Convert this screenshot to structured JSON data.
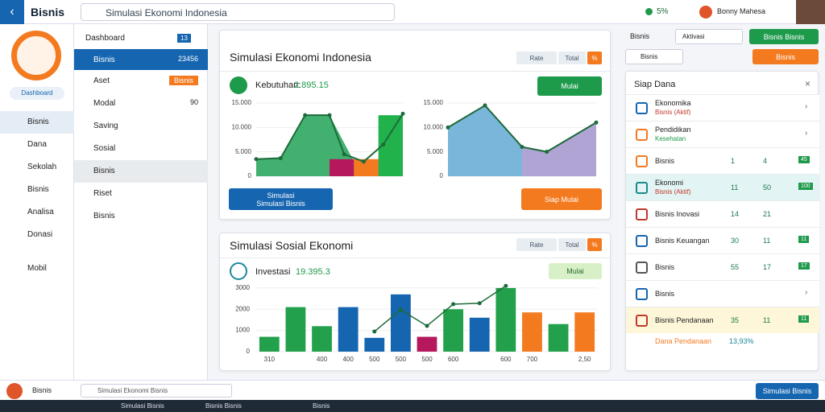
{
  "topbar": {
    "brand": "Bisnis",
    "search": "Simulasi Ekonomi Indonesia",
    "status": "5%",
    "user": "Bonny Mahesa"
  },
  "sidebar": {
    "button": "Dashboard",
    "items": [
      "Bisnis",
      "Dana",
      "Sekolah",
      "Bisnis",
      "Analisa",
      "Donasi",
      "Mobil"
    ]
  },
  "subnav": {
    "title": "Dashboard",
    "badge": "13",
    "items": [
      {
        "label": "Bisnis",
        "value": "23456"
      },
      {
        "label": "Aset",
        "value": "Bisnis"
      },
      {
        "label": "Modal",
        "value": "90"
      },
      {
        "label": "Saving"
      },
      {
        "label": "Sosial"
      },
      {
        "label": "Bisnis"
      },
      {
        "label": "Riset"
      },
      {
        "label": "Bisnis"
      }
    ]
  },
  "card1": {
    "title": "Simulasi Ekonomi Indonesia",
    "tabs": [
      "Rate",
      "Total",
      "%"
    ],
    "stat_label": "Kebutuhan:",
    "stat_value": "2.895.15",
    "button": "Mulai",
    "button_left": [
      "Simulasi",
      "Simulasi Bisnis"
    ],
    "button_right": "Siap Mulai",
    "chart_left": {
      "ylim": [
        0,
        15000
      ],
      "yticks": [
        {
          "value": 0,
          "label": "0"
        },
        {
          "value": 5000,
          "label": "5.000"
        },
        {
          "value": 10000,
          "label": "10.000"
        },
        {
          "value": 15000,
          "label": "15.000"
        }
      ],
      "xlim": [
        0,
        6
      ],
      "areas": [
        {
          "color": "#2ea860",
          "x": [
            0,
            1,
            2,
            3,
            4
          ],
          "values": [
            3500,
            3700,
            12500,
            12500,
            3000
          ]
        }
      ],
      "bars": [
        {
          "color": "#b5185c",
          "x": [
            3,
            4
          ],
          "value": 3500
        },
        {
          "color": "#f47a20",
          "x": [
            4,
            5
          ],
          "value": 3500
        },
        {
          "color": "#f47a20",
          "x": [
            5,
            6
          ],
          "value": 3500
        },
        {
          "color": "#22b24c",
          "x": [
            5,
            6
          ],
          "value": 12500
        }
      ],
      "line": {
        "color": "#1d6b3a",
        "x": [
          0,
          1,
          2,
          3,
          3.6,
          4.4,
          5.2,
          6
        ],
        "values": [
          3500,
          3700,
          12500,
          12500,
          4500,
          3000,
          6500,
          12800
        ]
      }
    },
    "chart_right": {
      "ylim": [
        0,
        15000
      ],
      "yticks": [
        {
          "value": 0,
          "label": "0"
        },
        {
          "value": 5000,
          "label": "5.000"
        },
        {
          "value": 10000,
          "label": "10.000"
        },
        {
          "value": 15000,
          "label": "15.000"
        }
      ],
      "xlim": [
        0,
        6
      ],
      "areas": [
        {
          "color": "#6aaed6",
          "x": [
            0,
            1.5,
            3
          ],
          "values": [
            10000,
            14500,
            6000
          ]
        },
        {
          "color": "#a79ad0",
          "x": [
            3,
            4,
            6
          ],
          "values": [
            6000,
            5000,
            11000
          ]
        }
      ],
      "line": {
        "color": "#1d6b3a",
        "x": [
          0,
          1.5,
          3,
          4,
          6
        ],
        "values": [
          10000,
          14500,
          6000,
          5000,
          11000
        ]
      }
    }
  },
  "card2": {
    "title": "Simulasi Sosial Ekonomi",
    "tabs": [
      "Rate",
      "Total",
      "%"
    ],
    "stat_label": "Investasi",
    "stat_value": "19.395.3",
    "button": "Mulai",
    "chart": {
      "ylim": [
        0,
        3300
      ],
      "yticks": [
        {
          "value": 0,
          "label": "0"
        },
        {
          "value": 1000,
          "label": "1000"
        },
        {
          "value": 2000,
          "label": "2000"
        },
        {
          "value": 3000,
          "label": "3000"
        }
      ],
      "categories": [
        "310",
        null,
        "400",
        "400",
        "500",
        "500",
        "500",
        "600",
        null,
        "600",
        "700",
        null,
        "2,50"
      ],
      "values": [
        700,
        2100,
        1200,
        2100,
        650,
        2700,
        700,
        2000,
        1600,
        3000,
        1850,
        1300,
        1850
      ],
      "colors": [
        "#22a04b",
        "#22a04b",
        "#22a04b",
        "#1565b0",
        "#1565b0",
        "#1565b0",
        "#b5185c",
        "#22a04b",
        "#1565b0",
        "#22a04b",
        "#f47a20",
        "#22a04b",
        "#f47a20"
      ],
      "line": {
        "color": "#1d6b3a",
        "values": [
          null,
          null,
          null,
          null,
          950,
          1975,
          1215,
          2240,
          2280,
          3100,
          null,
          null,
          null
        ]
      }
    }
  },
  "filters": {
    "label": "Bisnis",
    "dropdown": "Aktivasi",
    "green_button": "Bisnis Bisnis",
    "dropdown2": "Bisnis",
    "orange_button": "Bisnis"
  },
  "panel": {
    "title": "Siap Dana",
    "items": [
      {
        "label": "Ekonomika",
        "sub": "Bisnis (Aktif)",
        "color": "#1565b0"
      },
      {
        "label": "Pendidikan",
        "sub": "Kesehatan",
        "color": "#f47a20"
      },
      {
        "label": "Bisnis",
        "a": "1",
        "b": "4",
        "badge": "45",
        "color": "#f47a20"
      },
      {
        "label": "Ekonomi",
        "sub": "Bisnis (Aktif)",
        "a": "11",
        "b": "50",
        "badge": "100",
        "color": "#1a8a8a"
      },
      {
        "label": "Bisnis Inovasi",
        "a": "14",
        "b": "21",
        "color": "#c0392b"
      },
      {
        "label": "Bisnis Keuangan",
        "a": "30",
        "b": "11",
        "badge": "11",
        "color": "#1565b0"
      },
      {
        "label": "Bisnis",
        "a": "55",
        "b": "17",
        "badge": "17",
        "color": "#555"
      },
      {
        "label": "Bisnis",
        "color": "#1565b0"
      },
      {
        "label": "Bisnis Pendanaan",
        "a": "35",
        "b": "11",
        "badge": "11",
        "color": "#c0392b"
      }
    ],
    "footer_label": "Dana Pendanaan",
    "footer_value": "13,93%"
  },
  "taskbar": {
    "label": "Bisnis",
    "search": "Simulasi Ekonomi Bisnis",
    "tab1": "Simulasi Bisnis",
    "tab2": "Bisnis Bisnis",
    "tab3": "Bisnis",
    "button": "Simulasi Bisnis"
  }
}
